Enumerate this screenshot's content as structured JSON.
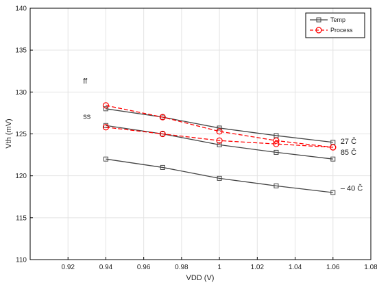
{
  "chart_data": {
    "type": "line",
    "xlabel": "VDD (V)",
    "ylabel": "Vth (mV)",
    "xlim": [
      0.9,
      1.08
    ],
    "ylim": [
      110,
      140
    ],
    "xticks": [
      0.92,
      0.94,
      0.96,
      0.98,
      1,
      1.02,
      1.04,
      1.06,
      1.08
    ],
    "yticks": [
      110,
      115,
      120,
      125,
      130,
      135,
      140
    ],
    "xtick_labels": [
      "0.92",
      "0.94",
      "0.96",
      "0.98",
      "1",
      "1.02",
      "1.04",
      "1.06",
      "1.08"
    ],
    "ytick_labels": [
      "110",
      "115",
      "120",
      "125",
      "130",
      "135",
      "140"
    ],
    "grid": true,
    "legend_position": "top-right",
    "legend": [
      {
        "label": "Temp",
        "color": "#444444",
        "marker": "square",
        "dash": "solid"
      },
      {
        "label": "Process",
        "color": "#ff0000",
        "marker": "circle",
        "dash": "dashed"
      }
    ],
    "series": [
      {
        "group": "Temp",
        "color": "#444444",
        "marker": "square",
        "dash": "solid",
        "x": [
          0.94,
          0.97,
          1,
          1.03,
          1.06
        ],
        "y": [
          128,
          127,
          125.7,
          124.8,
          124
        ]
      },
      {
        "group": "Temp",
        "color": "#444444",
        "marker": "square",
        "dash": "solid",
        "x": [
          0.94,
          0.97,
          1,
          1.03,
          1.06
        ],
        "y": [
          126,
          125,
          123.7,
          122.8,
          122
        ]
      },
      {
        "group": "Temp",
        "color": "#444444",
        "marker": "square",
        "dash": "solid",
        "x": [
          0.94,
          0.97,
          1,
          1.03,
          1.06
        ],
        "y": [
          122,
          121,
          119.7,
          118.8,
          118
        ]
      },
      {
        "group": "Process",
        "color": "#ff0000",
        "marker": "circle",
        "dash": "dashed",
        "x": [
          0.94,
          0.97,
          1,
          1.03,
          1.06
        ],
        "y": [
          128.4,
          127,
          125.3,
          124.2,
          123.4
        ]
      },
      {
        "group": "Process",
        "color": "#ff0000",
        "marker": "circle",
        "dash": "dashed",
        "x": [
          0.94,
          0.97,
          1,
          1.03,
          1.06
        ],
        "y": [
          125.8,
          125,
          124.2,
          123.8,
          123.4
        ]
      }
    ],
    "annotations": [
      {
        "text": "ff",
        "x": 0.928,
        "y": 131
      },
      {
        "text": "ss",
        "x": 0.928,
        "y": 126.8
      },
      {
        "text": "27  Č",
        "x": 1.064,
        "y": 123.8
      },
      {
        "text": "85  Č",
        "x": 1.064,
        "y": 122.5
      },
      {
        "text": "– 40  Č",
        "x": 1.064,
        "y": 118.2
      }
    ]
  }
}
